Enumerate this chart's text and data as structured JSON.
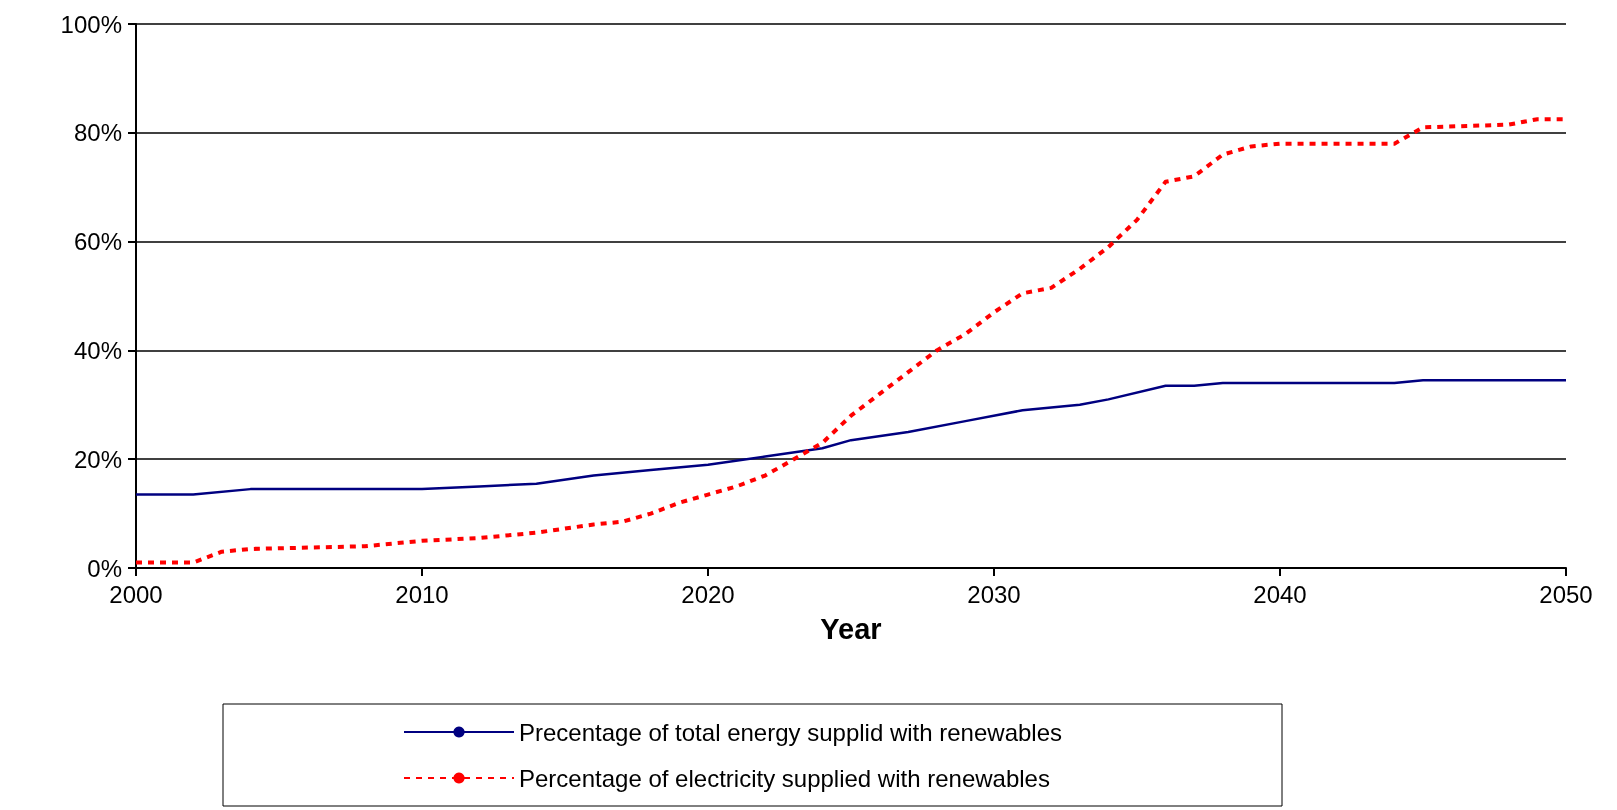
{
  "chart_data": {
    "type": "line",
    "xlabel": "Year",
    "xlim": [
      2000,
      2050
    ],
    "xticks": [
      2000,
      2010,
      2020,
      2030,
      2040,
      2050
    ],
    "ylim": [
      0,
      100
    ],
    "yticks": [
      {
        "value": 0,
        "label": "0%"
      },
      {
        "value": 20,
        "label": "20%"
      },
      {
        "value": 40,
        "label": "40%"
      },
      {
        "value": 60,
        "label": "60%"
      },
      {
        "value": 80,
        "label": "80%"
      },
      {
        "value": 100,
        "label": "100%"
      }
    ],
    "grid": "y",
    "legend": "bottom",
    "marker": "none",
    "series": [
      {
        "name": "Precentage of total energy supplid with renewables",
        "color": "#000080",
        "line_style": "solid",
        "x": [
          2000,
          2002,
          2004,
          2008,
          2010,
          2012,
          2014,
          2016,
          2018,
          2020,
          2022,
          2024,
          2025,
          2027,
          2029,
          2031,
          2033,
          2034,
          2036,
          2037,
          2038,
          2044,
          2045,
          2050
        ],
        "values": [
          13.5,
          13.5,
          14.5,
          14.5,
          14.5,
          15,
          15.5,
          17,
          18,
          19,
          20.5,
          22,
          23.5,
          25,
          27,
          29,
          30,
          31,
          33.5,
          33.5,
          34,
          34,
          34.5,
          34.5
        ]
      },
      {
        "name": "Percentage of electricity supplied with renewables",
        "color": "#ff0000",
        "line_style": "dashed",
        "x": [
          2000,
          2002,
          2003,
          2004,
          2008,
          2009,
          2010,
          2012,
          2014,
          2016,
          2017,
          2018,
          2019,
          2020,
          2021,
          2022,
          2023,
          2024,
          2025,
          2026,
          2027,
          2028,
          2029,
          2030,
          2031,
          2032,
          2033,
          2034,
          2035,
          2036,
          2037,
          2038,
          2039,
          2040,
          2044,
          2045,
          2048,
          2049,
          2050
        ],
        "values": [
          1,
          1,
          3,
          3.5,
          4,
          4.5,
          5,
          5.5,
          6.5,
          8,
          8.5,
          10,
          12,
          13.5,
          15,
          17,
          20,
          23,
          28,
          32,
          36,
          40,
          43,
          47,
          50.5,
          51.5,
          55,
          59,
          64,
          71,
          72,
          76,
          77.5,
          78,
          78,
          81,
          81.5,
          82.5,
          82.5
        ]
      }
    ]
  }
}
